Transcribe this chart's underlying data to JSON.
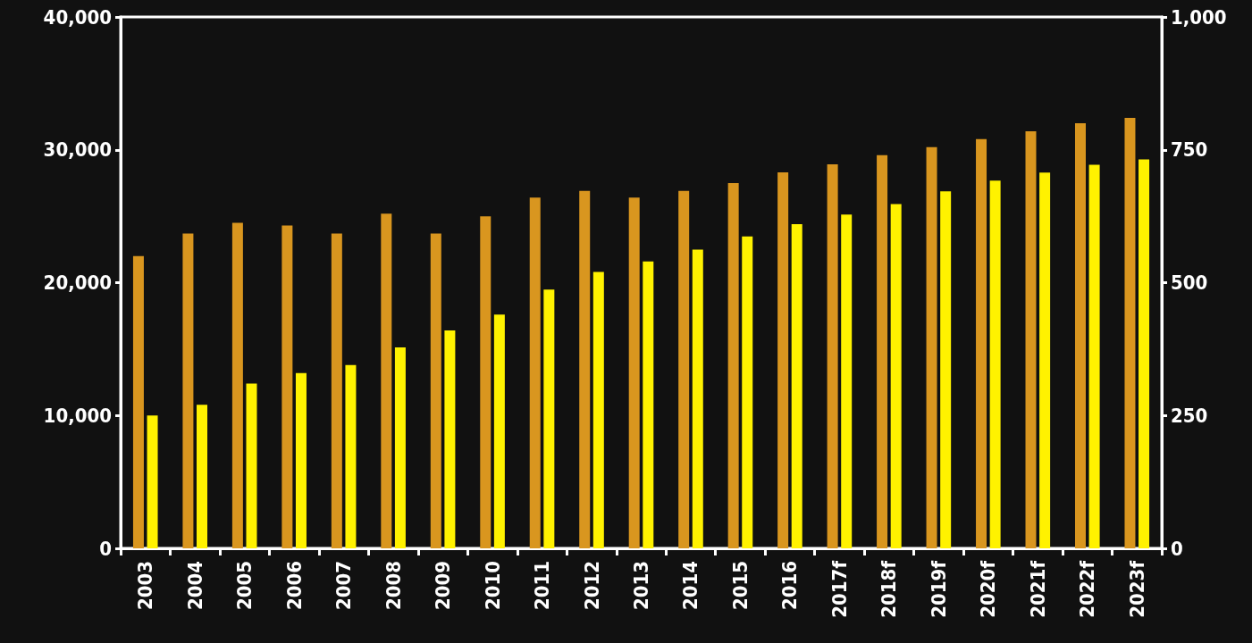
{
  "chart_data": {
    "type": "bar",
    "categories": [
      "2003",
      "2004",
      "2005",
      "2006",
      "2007",
      "2008",
      "2009",
      "2010",
      "2011",
      "2012",
      "2013",
      "2014",
      "2015",
      "2016",
      "2017f",
      "2018f",
      "2019f",
      "2020f",
      "2021f",
      "2022f",
      "2023f"
    ],
    "series": [
      {
        "color": "#d9961f",
        "values": [
          22000,
          23700,
          24500,
          24300,
          23700,
          25200,
          23700,
          25000,
          26400,
          26900,
          26400,
          26900,
          27500,
          28300,
          28900,
          29600,
          30200,
          30800,
          31400,
          32000,
          32400
        ]
      },
      {
        "color": "#fff200",
        "axis": "y2",
        "values": [
          250,
          270,
          310,
          330,
          345,
          378,
          410,
          440,
          487,
          520,
          540,
          562,
          587,
          610,
          628,
          648,
          672,
          692,
          707,
          722,
          732
        ]
      }
    ],
    "ylim": [
      0,
      40000
    ],
    "yticks": [
      0,
      {
        "value": 10000,
        "label": "10,000"
      },
      {
        "value": 20000,
        "label": "20,000"
      },
      {
        "value": 30000,
        "label": "30,000"
      },
      {
        "value": 40000,
        "label": "40,000"
      }
    ],
    "y2lim": [
      0,
      1000
    ],
    "y2ticks": [
      0,
      250,
      500,
      750,
      {
        "value": 1000,
        "label": "1,000"
      }
    ]
  }
}
